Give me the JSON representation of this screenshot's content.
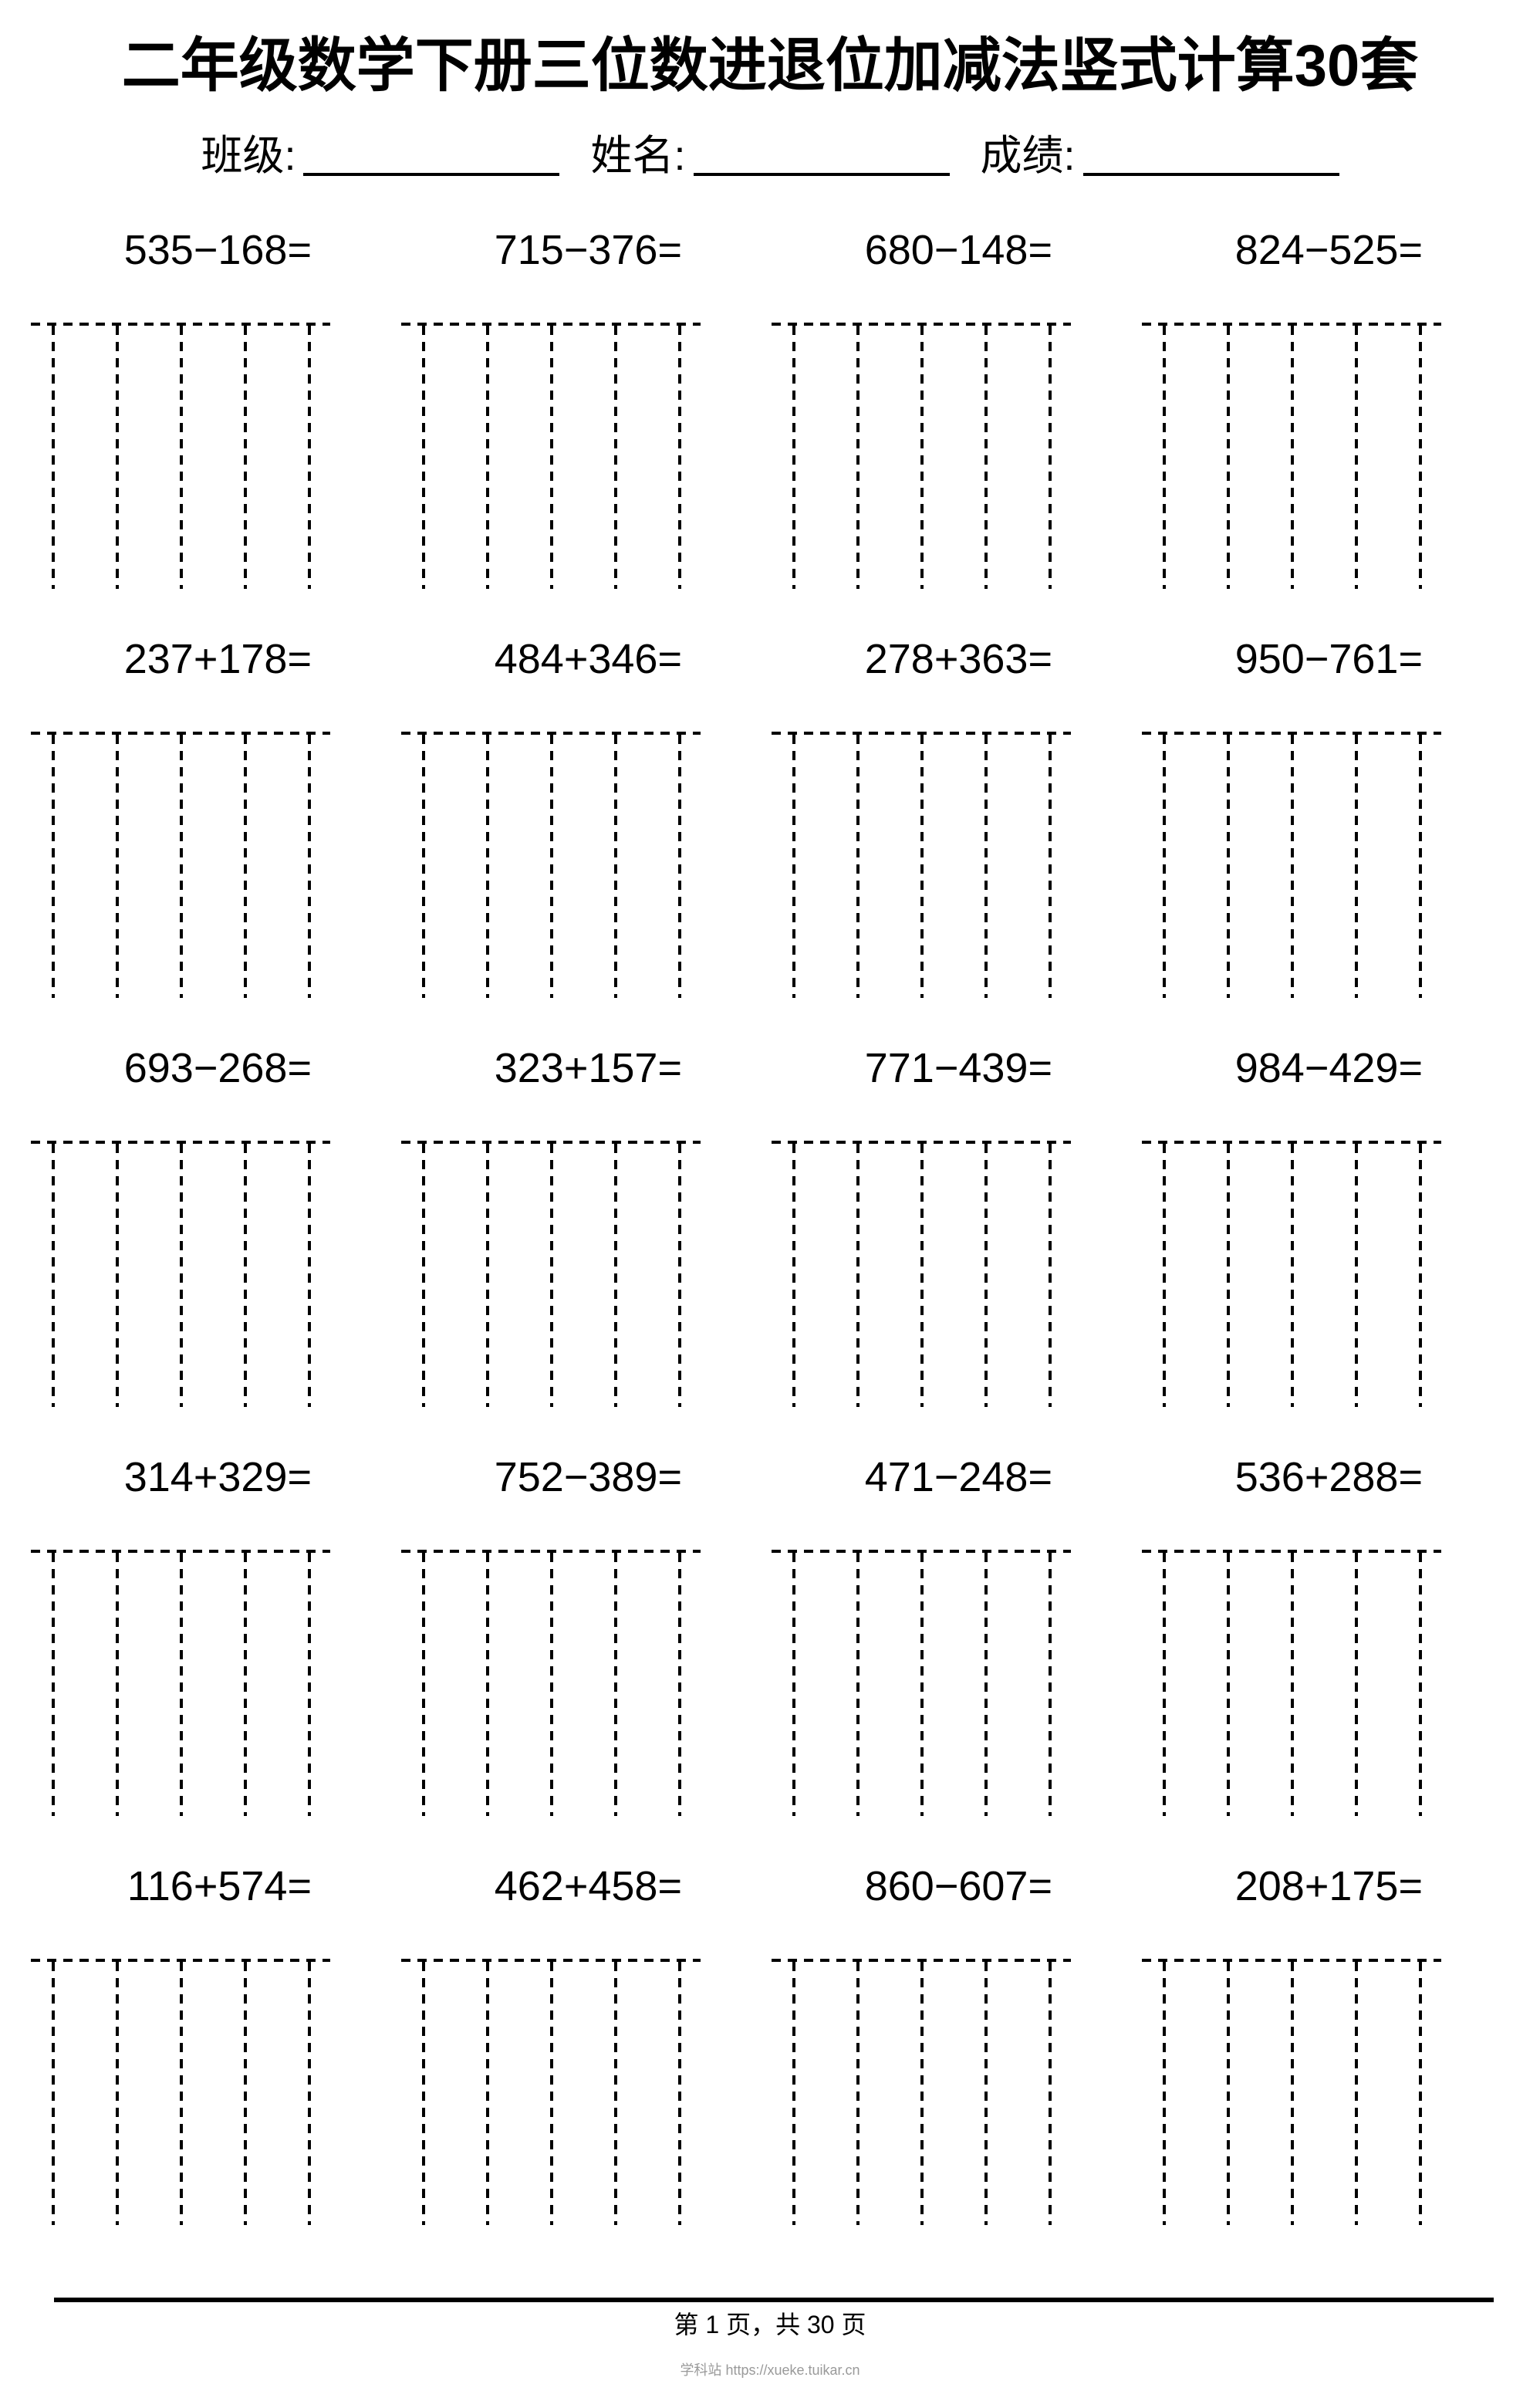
{
  "title": "二年级数学下册三位数进退位加减法竖式计算30套",
  "student_info": {
    "class_label": "班级:",
    "name_label": "姓名:",
    "score_label": "成绩:"
  },
  "sections": [
    {
      "problems": [
        "535−168=",
        "715−376=",
        "680−148=",
        "824−525="
      ]
    },
    {
      "problems": [
        "237+178=",
        "484+346=",
        "278+363=",
        "950−761="
      ]
    },
    {
      "problems": [
        "693−268=",
        "323+157=",
        "771−439=",
        "984−429="
      ]
    },
    {
      "problems": [
        "314+329=",
        "752−389=",
        "471−248=",
        "536+288="
      ]
    },
    {
      "problems": [
        "116+574=",
        "462+458=",
        "860−607=",
        "208+175="
      ]
    }
  ],
  "grid": {
    "boxes_per_row": 4,
    "columns_per_box": 4,
    "line_style": "dashed",
    "line_color": "#000000"
  },
  "footer": {
    "page_indicator": "第 1 页，共 30 页",
    "watermark": "学科站 https://xueke.tuikar.cn"
  }
}
